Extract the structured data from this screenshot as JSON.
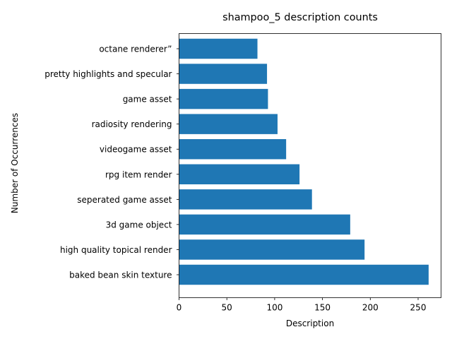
{
  "chart_data": {
    "type": "bar",
    "orientation": "horizontal",
    "title": "shampoo_5 description counts",
    "xlabel": "Description",
    "ylabel": "Number of Occurrences",
    "categories": [
      "baked bean skin texture",
      "high quality topical render",
      "3d game object",
      "seperated game asset",
      "rpg item render",
      "videogame asset",
      "radiosity rendering",
      "game asset",
      "pretty highlights and specular",
      "octane renderer”"
    ],
    "values": [
      261,
      194,
      179,
      139,
      126,
      112,
      103,
      93,
      92,
      82
    ],
    "xlim": [
      0,
      274
    ],
    "xticks": [
      0,
      50,
      100,
      150,
      200,
      250
    ],
    "bar_color": "#1f77b4",
    "grid": false
  }
}
